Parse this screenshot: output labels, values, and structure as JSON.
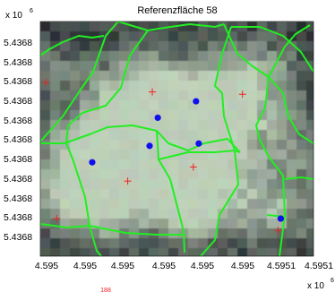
{
  "chart_data": {
    "type": "scatter",
    "title": "Referenzfläche 58",
    "x_multiplier_label": "x 10",
    "x_multiplier_exp": "6",
    "y_multiplier_label": "x 10",
    "y_multiplier_exp": "6",
    "x_tick_labels": [
      "4.595",
      "4.595",
      "4.595",
      "4.595",
      "4.595",
      "4.595",
      "4.5951",
      "4.5951"
    ],
    "y_tick_labels": [
      "5.4368",
      "5.4368",
      "5.4368",
      "5.4368",
      "5.4368",
      "5.4368",
      "5.4368",
      "5.4368",
      "5.4368",
      "5.4368",
      "5.4368",
      "5.4368"
    ],
    "bottom_number": "188",
    "grid": false,
    "colors": {
      "segment_lines": "#22ee22",
      "blue_markers": "#1010ee",
      "red_markers": "#ee2222",
      "background_dark": "#2a2f33",
      "vegetation_light": "#aab5a2"
    },
    "series": [
      {
        "marker": "circle",
        "color": "blue",
        "points": [
          [
            0.19,
            0.6
          ],
          [
            0.43,
            0.41
          ],
          [
            0.57,
            0.34
          ],
          [
            0.4,
            0.53
          ],
          [
            0.58,
            0.52
          ],
          [
            0.88,
            0.84
          ]
        ]
      },
      {
        "marker": "plus",
        "color": "red",
        "points": [
          [
            0.02,
            0.26
          ],
          [
            0.41,
            0.3
          ],
          [
            0.74,
            0.31
          ],
          [
            0.56,
            0.62
          ],
          [
            0.32,
            0.68
          ],
          [
            0.87,
            0.89
          ],
          [
            0.06,
            0.84
          ]
        ]
      }
    ]
  }
}
